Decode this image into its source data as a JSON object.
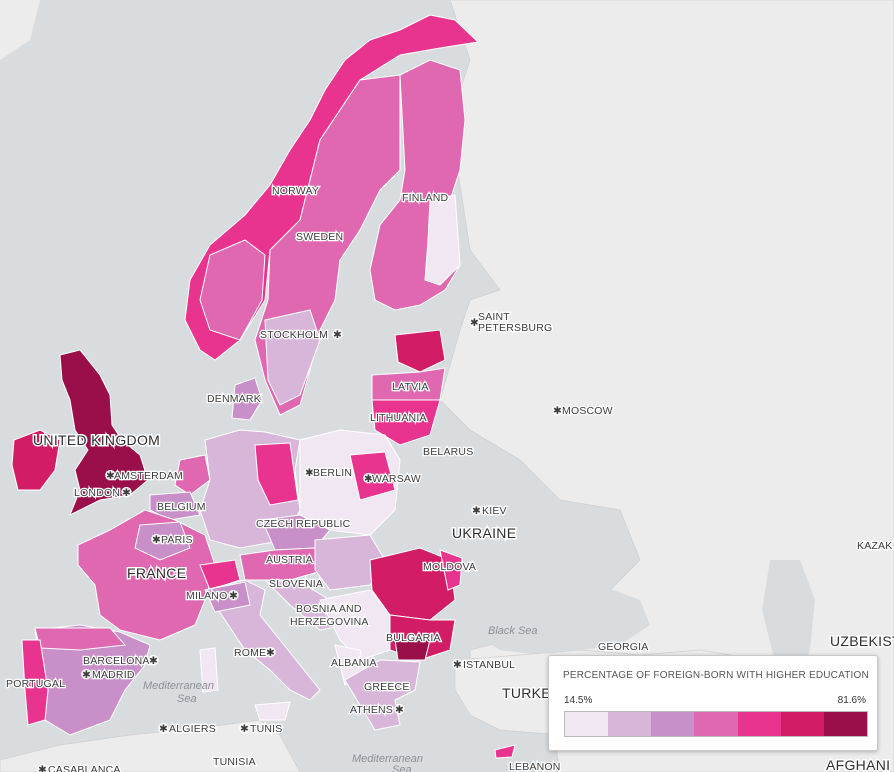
{
  "map": {
    "labels": {
      "norway": "NORWAY",
      "sweden": "SWEDEN",
      "finland": "FINLAND",
      "stockholm": "STOCKHOLM",
      "saint_petersburg_1": "SAINT",
      "saint_petersburg_2": "PETERSBURG",
      "moscow": "MOSCOW",
      "latvia": "LATVIA",
      "lithuania": "LITHUANIA",
      "denmark": "DENMARK",
      "united_kingdom": "UNITED KINGDOM",
      "amsterdam": "AMSTERDAM",
      "london": "LONDON",
      "berlin": "BERLIN",
      "warsaw": "WARSAW",
      "belarus": "BELARUS",
      "belgium": "BELGIUM",
      "kiev": "KIEV",
      "ukraine": "UKRAINE",
      "czech_republic": "CZECH REPUBLIC",
      "paris": "PARIS",
      "austria": "AUSTRIA",
      "france": "FRANCE",
      "moldova": "MOLDOVA",
      "kazak": "KAZAK",
      "slovenia": "SLOVENIA",
      "milano": "MILANO",
      "bosnia_1": "BOSNIA AND",
      "bosnia_2": "HERZEGOVINA",
      "black_sea": "Black Sea",
      "georgia": "GEORGIA",
      "uzbekistan": "UZBEKISTAN",
      "rome": "ROME",
      "bulgaria": "BULGARIA",
      "barcelona": "BARCELONA",
      "albania": "ALBANIA",
      "istanbul": "ISTANBUL",
      "portugal": "PORTUGAL",
      "madrid": "MADRID",
      "mediterranean_west_1": "Mediterranean",
      "mediterranean_west_2": "Sea",
      "greece": "GREECE",
      "turkey": "TURKE",
      "athens": "ATHENS",
      "algiers": "ALGIERS",
      "tunis": "TUNIS",
      "tunisia": "TUNISIA",
      "mediterranean_east_1": "Mediterranean",
      "mediterranean_east_2": "Sea",
      "lebanon": "LEBANON",
      "casablanca": "CASABLANCA",
      "afghanistan": "AFGHANI"
    },
    "colors": {
      "sea": "#d9dcdf",
      "land": "#ececec",
      "border": "#ffffff",
      "bin1": "#f1e7f3",
      "bin2": "#d8b6da",
      "bin3": "#c98fc8",
      "bin4": "#df68b0",
      "bin5": "#e8348f",
      "bin6": "#d21d66",
      "bin7": "#9a0f4a"
    }
  },
  "legend": {
    "title": "PERCENTAGE OF FOREIGN-BORN WITH HIGHER EDUCATION",
    "min": "14.5%",
    "max": "81.6%",
    "bins": [
      "#f1e7f3",
      "#d8b6da",
      "#c98fc8",
      "#df68b0",
      "#e8348f",
      "#d21d66",
      "#9a0f4a"
    ]
  }
}
